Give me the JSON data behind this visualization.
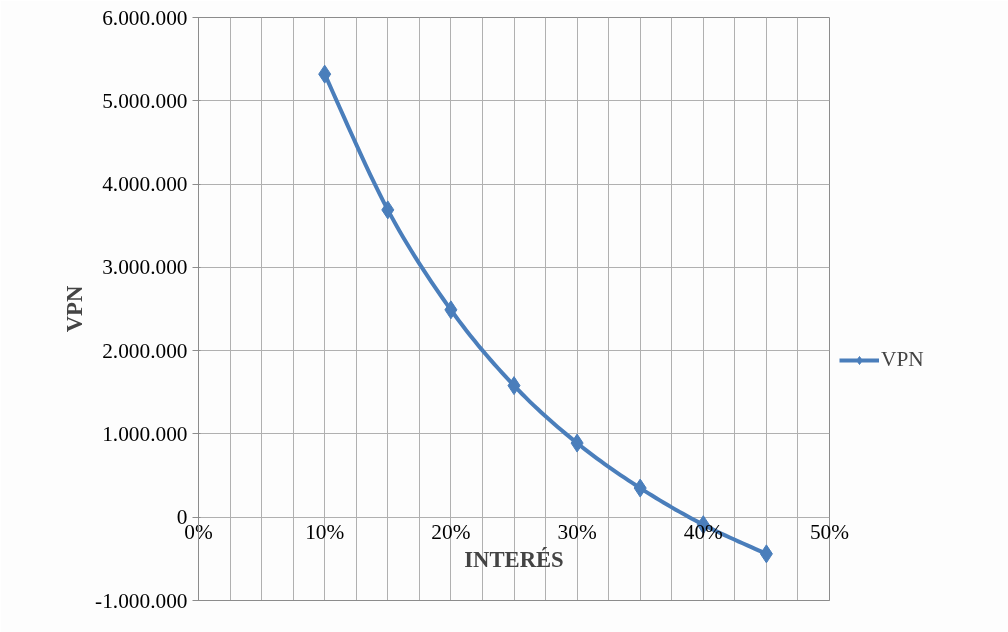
{
  "chart_data": {
    "type": "line",
    "xlabel": "INTERÉS",
    "ylabel": "VPN",
    "x": [
      10,
      15,
      20,
      25,
      30,
      35,
      40,
      45
    ],
    "series": [
      {
        "name": "VPN",
        "color": "#4a7ebb",
        "values": [
          5320000,
          3690000,
          2490000,
          1580000,
          890000,
          350000,
          -90000,
          -440000
        ]
      }
    ],
    "xlim": [
      0,
      50
    ],
    "xticks": [
      {
        "value": 0,
        "label": "0%"
      },
      {
        "value": 2.5,
        "label": null
      },
      {
        "value": 5,
        "label": null
      },
      {
        "value": 7.5,
        "label": null
      },
      {
        "value": 10,
        "label": "10%"
      },
      {
        "value": 12.5,
        "label": null
      },
      {
        "value": 15,
        "label": null
      },
      {
        "value": 17.5,
        "label": null
      },
      {
        "value": 20,
        "label": "20%"
      },
      {
        "value": 22.5,
        "label": null
      },
      {
        "value": 25,
        "label": null
      },
      {
        "value": 27.5,
        "label": null
      },
      {
        "value": 30,
        "label": "30%"
      },
      {
        "value": 32.5,
        "label": null
      },
      {
        "value": 35,
        "label": null
      },
      {
        "value": 37.5,
        "label": null
      },
      {
        "value": 40,
        "label": "40%"
      },
      {
        "value": 42.5,
        "label": null
      },
      {
        "value": 45,
        "label": null
      },
      {
        "value": 47.5,
        "label": null
      },
      {
        "value": 50,
        "label": "50%"
      }
    ],
    "ylim": [
      -1000000,
      6000000
    ],
    "yticks": [
      {
        "value": -1000000,
        "label": "-1.000.000"
      },
      {
        "value": 0,
        "label": "0"
      },
      {
        "value": 1000000,
        "label": "1.000.000"
      },
      {
        "value": 2000000,
        "label": "2.000.000"
      },
      {
        "value": 3000000,
        "label": "3.000.000"
      },
      {
        "value": 4000000,
        "label": "4.000.000"
      },
      {
        "value": 5000000,
        "label": "5.000.000"
      },
      {
        "value": 6000000,
        "label": "6.000.000"
      }
    ],
    "grid": true,
    "legend": "right",
    "marker": "diamond",
    "line_style": "solid"
  }
}
